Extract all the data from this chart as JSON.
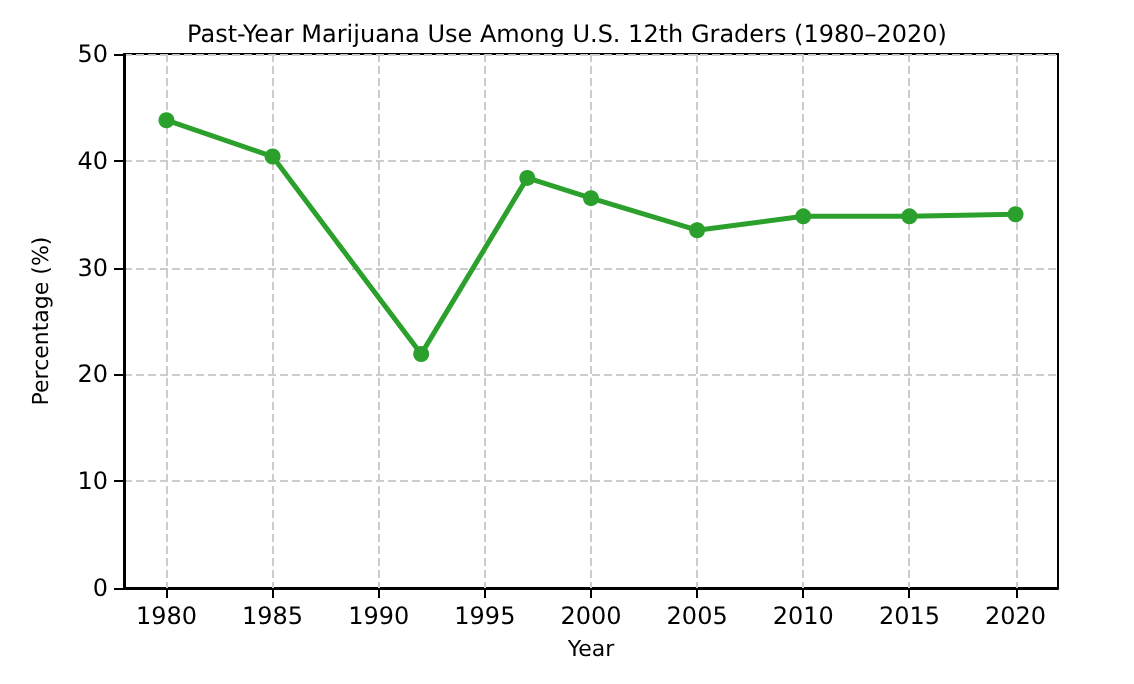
{
  "chart_data": {
    "type": "line",
    "title": "Past-Year Marijuana Use Among U.S. 12th Graders (1980–2020)",
    "xlabel": "Year",
    "ylabel": "Percentage (%)",
    "x": [
      1980,
      1985,
      1992,
      1997,
      2000,
      2005,
      2010,
      2015,
      2020
    ],
    "series": [
      {
        "color": "#2ca02c",
        "values": [
          43.8,
          40.4,
          21.9,
          38.4,
          36.5,
          33.5,
          34.8,
          34.8,
          35.0
        ]
      }
    ],
    "xlim": [
      1978,
      2022
    ],
    "xticks": [
      1980,
      1985,
      1990,
      1995,
      2000,
      2005,
      2010,
      2015,
      2020
    ],
    "ylim": [
      0,
      50
    ],
    "yticks": [
      0,
      10,
      20,
      30,
      40,
      50
    ],
    "grid": true,
    "marker": "circle",
    "line_style": "solid"
  }
}
